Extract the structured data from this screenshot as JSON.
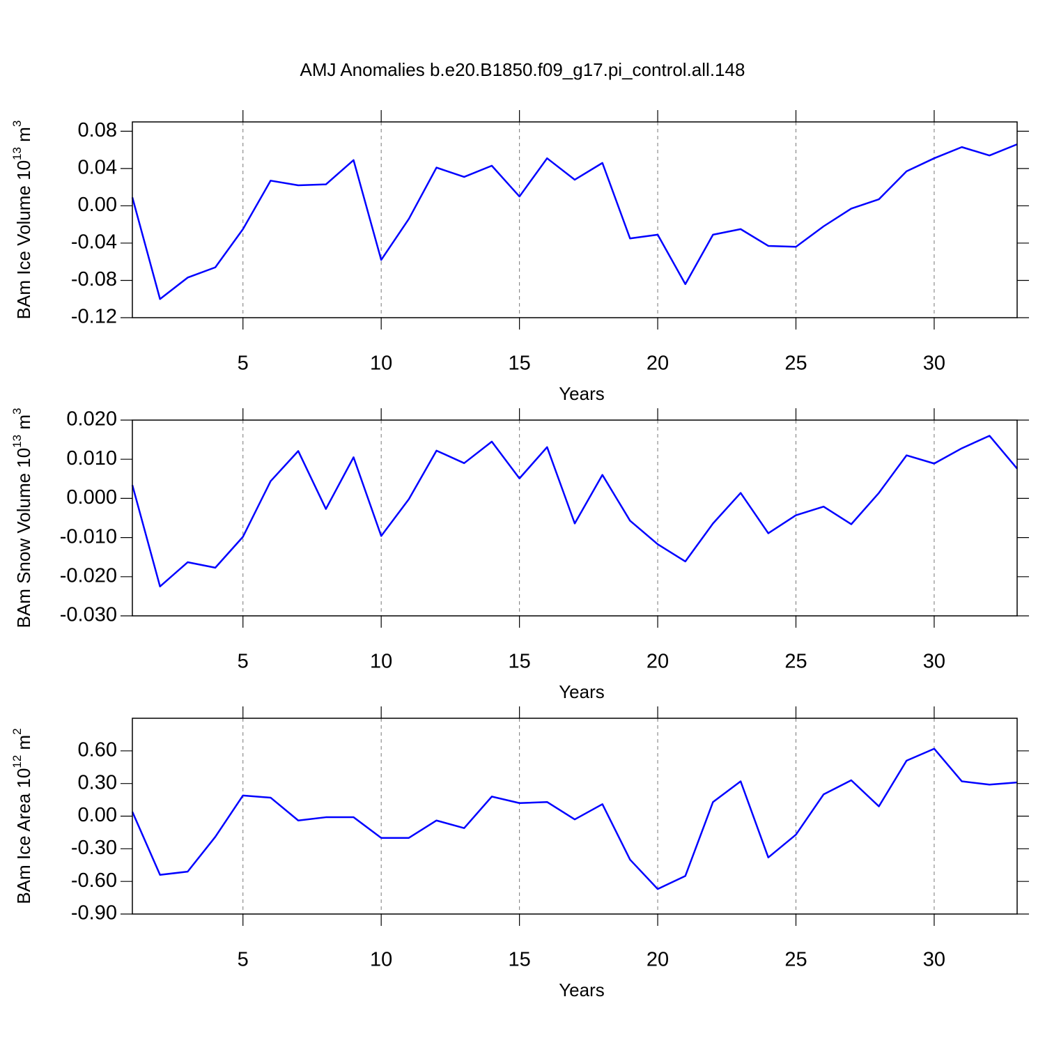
{
  "title": "AMJ Anomalies b.e20.B1850.f09_g17.pi_control.all.148",
  "chart_data": [
    {
      "type": "line",
      "ylabel": [
        "BAm Ice Volume 10",
        "13",
        " m",
        "3"
      ],
      "xlabel": "Years",
      "color": "#0000ff",
      "xgrid": true,
      "x": [
        1,
        2,
        3,
        4,
        5,
        6,
        7,
        8,
        9,
        10,
        11,
        12,
        13,
        14,
        15,
        16,
        17,
        18,
        19,
        20,
        21,
        22,
        23,
        24,
        25,
        26,
        27,
        28,
        29,
        30,
        31,
        32,
        33
      ],
      "values": [
        0.009,
        -0.1,
        -0.077,
        -0.066,
        -0.025,
        0.027,
        0.022,
        0.023,
        0.049,
        -0.058,
        -0.014,
        0.041,
        0.031,
        0.043,
        0.01,
        0.051,
        0.028,
        0.046,
        -0.035,
        -0.031,
        -0.084,
        -0.031,
        -0.025,
        -0.043,
        -0.044,
        -0.022,
        -0.003,
        0.007,
        0.037,
        0.051,
        0.063,
        0.054,
        0.066
      ],
      "xlim": [
        1,
        33
      ],
      "xticks": [
        5,
        10,
        15,
        20,
        25,
        30
      ],
      "ylim": [
        -0.12,
        0.09
      ],
      "yticks": [
        -0.12,
        -0.08,
        -0.04,
        {
          "value": 0,
          "label": "0.00"
        },
        0.04,
        0.08
      ]
    },
    {
      "type": "line",
      "ylabel": [
        "BAm Snow Volume 10",
        "13",
        " m",
        "3"
      ],
      "xlabel": "Years",
      "color": "#0000ff",
      "xgrid": true,
      "x": [
        1,
        2,
        3,
        4,
        5,
        6,
        7,
        8,
        9,
        10,
        11,
        12,
        13,
        14,
        15,
        16,
        17,
        18,
        19,
        20,
        21,
        22,
        23,
        24,
        25,
        26,
        27,
        28,
        29,
        30,
        31,
        32,
        33
      ],
      "values": [
        0.0034,
        -0.0225,
        -0.0163,
        -0.0177,
        -0.0098,
        0.0044,
        0.0121,
        -0.0027,
        0.0105,
        -0.0096,
        -0.0002,
        0.0122,
        0.009,
        0.0145,
        0.0051,
        0.0131,
        -0.0064,
        0.006,
        -0.0057,
        -0.0117,
        -0.0161,
        -0.0064,
        0.0014,
        -0.0089,
        -0.0043,
        -0.0021,
        -0.0066,
        0.0014,
        0.011,
        0.0089,
        0.0128,
        0.016,
        0.0076
      ],
      "xlim": [
        1,
        33
      ],
      "xticks": [
        5,
        10,
        15,
        20,
        25,
        30
      ],
      "ylim": [
        -0.03,
        0.02
      ],
      "yticks": [
        {
          "value": -0.03,
          "label": "-0.030"
        },
        {
          "value": -0.02,
          "label": "-0.020"
        },
        {
          "value": -0.01,
          "label": "-0.010"
        },
        {
          "value": 0,
          "label": "0.000"
        },
        {
          "value": 0.01,
          "label": "0.010"
        },
        {
          "value": 0.02,
          "label": "0.020"
        }
      ]
    },
    {
      "type": "line",
      "ylabel": [
        "BAm Ice Area 10",
        "12",
        " m",
        "2"
      ],
      "xlabel": "Years",
      "color": "#0000ff",
      "xgrid": true,
      "x": [
        1,
        2,
        3,
        4,
        5,
        6,
        7,
        8,
        9,
        10,
        11,
        12,
        13,
        14,
        15,
        16,
        17,
        18,
        19,
        20,
        21,
        22,
        23,
        24,
        25,
        26,
        27,
        28,
        29,
        30,
        31,
        32,
        33
      ],
      "values": [
        0.04,
        -0.54,
        -0.51,
        -0.19,
        0.19,
        0.17,
        -0.04,
        -0.01,
        -0.01,
        -0.2,
        -0.2,
        -0.04,
        -0.11,
        0.18,
        0.12,
        0.13,
        -0.03,
        0.11,
        -0.4,
        -0.67,
        -0.55,
        0.13,
        0.32,
        -0.38,
        -0.17,
        0.2,
        0.33,
        0.09,
        0.51,
        0.62,
        0.32,
        0.29,
        0.31
      ],
      "xlim": [
        1,
        33
      ],
      "xticks": [
        5,
        10,
        15,
        20,
        25,
        30
      ],
      "ylim": [
        -0.9,
        0.9
      ],
      "yticks": [
        {
          "value": -0.9,
          "label": "-0.90"
        },
        {
          "value": -0.6,
          "label": "-0.60"
        },
        {
          "value": -0.3,
          "label": "-0.30"
        },
        {
          "value": 0,
          "label": "0.00"
        },
        {
          "value": 0.3,
          "label": "0.30"
        },
        {
          "value": 0.6,
          "label": "0.60"
        }
      ]
    }
  ]
}
